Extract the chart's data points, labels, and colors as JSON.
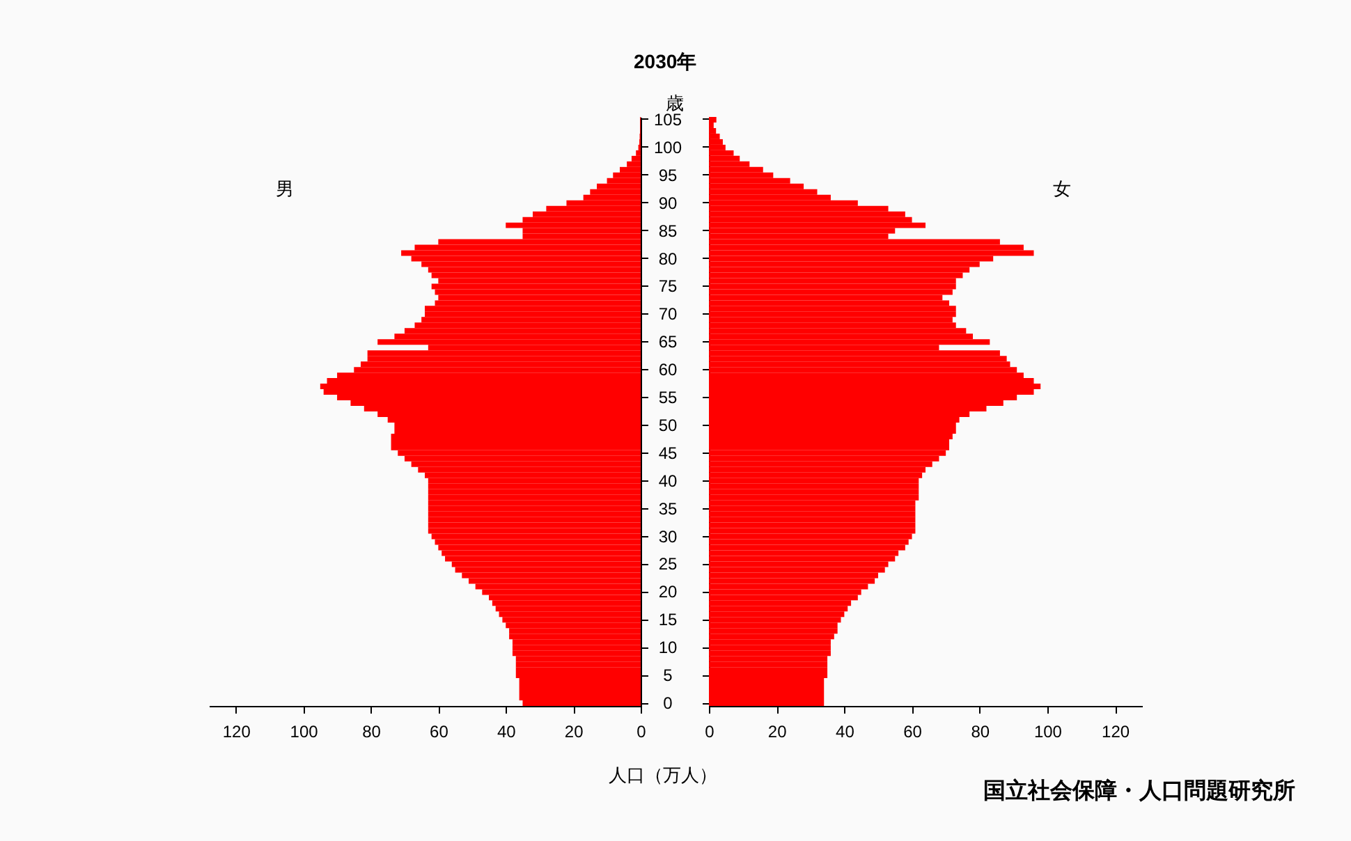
{
  "chart_data": [
    {
      "type": "bar",
      "orientation": "horizontal",
      "title": "2030年",
      "ylabel": "歳",
      "xlabel": "人口（万人）",
      "annotations": [
        "国立社会保障・人口問題研究所"
      ],
      "categories": [
        "105",
        null,
        null,
        null,
        null,
        "100",
        null,
        null,
        null,
        null,
        "95",
        null,
        null,
        null,
        null,
        "90",
        null,
        null,
        null,
        null,
        "85",
        null,
        null,
        null,
        null,
        "80",
        null,
        null,
        null,
        null,
        "75",
        null,
        null,
        null,
        null,
        "70",
        null,
        null,
        null,
        null,
        "65",
        null,
        null,
        null,
        null,
        "60",
        null,
        null,
        null,
        null,
        "55",
        null,
        null,
        null,
        null,
        "50",
        null,
        null,
        null,
        null,
        "45",
        null,
        null,
        null,
        null,
        "40",
        null,
        null,
        null,
        null,
        "35",
        null,
        null,
        null,
        null,
        "30",
        null,
        null,
        null,
        null,
        "25",
        null,
        null,
        null,
        null,
        "20",
        null,
        null,
        null,
        null,
        "15",
        null,
        null,
        null,
        null,
        "10",
        null,
        null,
        null,
        null,
        "5",
        null,
        null,
        null,
        null,
        "0"
      ],
      "series": [
        {
          "name": "男",
          "color": "#ff0000",
          "values": [
            0.2,
            0.2,
            0.2,
            0.3,
            0.4,
            0.7,
            1.4,
            2.7,
            4.1,
            6.2,
            8.2,
            10,
            13,
            15,
            17,
            22,
            28,
            32,
            35,
            40,
            35,
            35,
            60,
            67,
            71,
            68,
            65,
            63,
            62,
            60,
            62,
            61,
            60,
            61,
            64,
            64,
            65,
            67,
            70,
            73,
            78,
            63,
            81,
            81,
            83,
            85,
            90,
            93,
            95,
            94,
            90,
            86,
            82,
            78,
            75,
            73,
            73,
            74,
            74,
            74,
            72,
            70,
            68,
            66,
            64,
            63,
            63,
            63,
            63,
            63,
            63,
            63,
            63,
            63,
            63,
            62,
            61,
            60,
            59,
            58,
            56,
            55,
            53,
            51,
            49,
            47,
            45,
            44,
            43,
            42,
            41,
            40,
            39,
            39,
            38,
            38,
            38,
            37,
            37,
            37,
            37,
            36,
            36,
            36,
            36,
            35
          ]
        }
      ],
      "xlim": [
        128,
        0
      ],
      "xticks": [
        120,
        100,
        80,
        60,
        40,
        20,
        0
      ]
    },
    {
      "type": "bar",
      "orientation": "horizontal",
      "tick_labels": "x",
      "categories": [
        "105",
        null,
        null,
        null,
        null,
        "100",
        null,
        null,
        null,
        null,
        "95",
        null,
        null,
        null,
        null,
        "90",
        null,
        null,
        null,
        null,
        "85",
        null,
        null,
        null,
        null,
        "80",
        null,
        null,
        null,
        null,
        "75",
        null,
        null,
        null,
        null,
        "70",
        null,
        null,
        null,
        null,
        "65",
        null,
        null,
        null,
        null,
        "60",
        null,
        null,
        null,
        null,
        "55",
        null,
        null,
        null,
        null,
        "50",
        null,
        null,
        null,
        null,
        "45",
        null,
        null,
        null,
        null,
        "40",
        null,
        null,
        null,
        null,
        "35",
        null,
        null,
        null,
        null,
        "30",
        null,
        null,
        null,
        null,
        "25",
        null,
        null,
        null,
        null,
        "20",
        null,
        null,
        null,
        null,
        "15",
        null,
        null,
        null,
        null,
        "10",
        null,
        null,
        null,
        null,
        "5",
        null,
        null,
        null,
        null,
        "0"
      ],
      "series": [
        {
          "name": "女",
          "color": "#ff0000",
          "values": [
            2.2,
            1.4,
            2.1,
            3.2,
            4.1,
            4.9,
            7.3,
            9.1,
            12,
            16,
            19,
            24,
            28,
            32,
            36,
            44,
            53,
            58,
            60,
            64,
            55,
            53,
            86,
            93,
            96,
            84,
            80,
            77,
            75,
            73,
            73,
            72,
            69,
            71,
            73,
            73,
            72,
            73,
            76,
            78,
            83,
            68,
            86,
            88,
            89,
            91,
            93,
            96,
            98,
            96,
            91,
            87,
            82,
            77,
            74,
            73,
            73,
            72,
            71,
            71,
            70,
            68,
            66,
            64,
            63,
            62,
            62,
            62,
            62,
            61,
            61,
            61,
            61,
            61,
            61,
            60,
            59,
            58,
            56,
            55,
            53,
            52,
            50,
            49,
            47,
            45,
            44,
            42,
            41,
            40,
            39,
            38,
            38,
            37,
            36,
            36,
            36,
            35,
            35,
            35,
            35,
            34,
            34,
            34,
            34,
            34
          ]
        }
      ],
      "xlim": [
        0,
        128
      ],
      "xticks": [
        0,
        20,
        40,
        60,
        80,
        100,
        120
      ]
    }
  ]
}
